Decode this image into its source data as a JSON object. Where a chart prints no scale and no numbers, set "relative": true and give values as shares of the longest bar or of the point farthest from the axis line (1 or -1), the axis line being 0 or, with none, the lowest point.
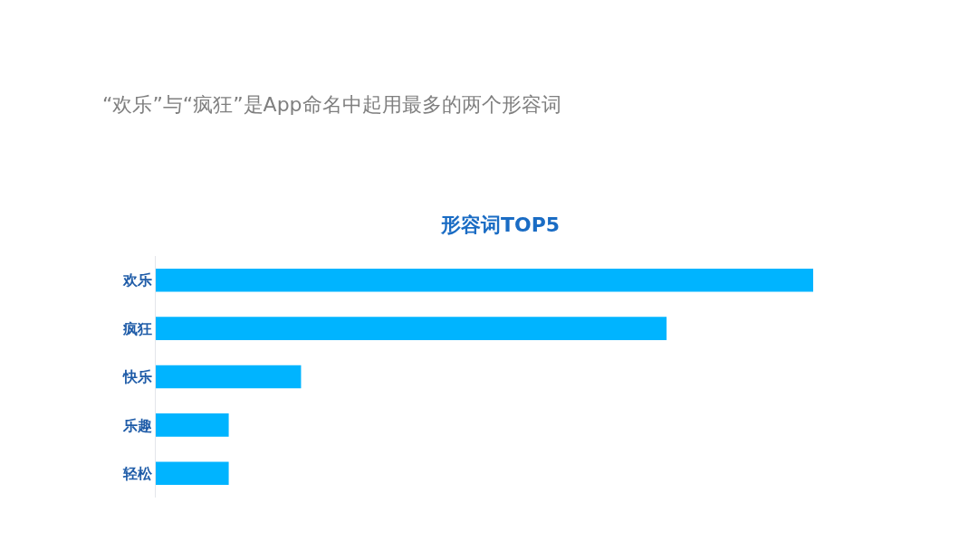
{
  "chart_data": {
    "type": "bar",
    "orientation": "horizontal",
    "relative": true,
    "title": "“欢乐”与“疯狂”是App命名中起用最多的两个形容词",
    "subtitle": "形容词TOP5",
    "categories": [
      "欢乐",
      "疯狂",
      "快乐",
      "乐趣",
      "轻松"
    ],
    "values": [
      1,
      0.777,
      0.221,
      0.111,
      0.111
    ],
    "color": "#00b4ff",
    "tick_labels": "y"
  }
}
